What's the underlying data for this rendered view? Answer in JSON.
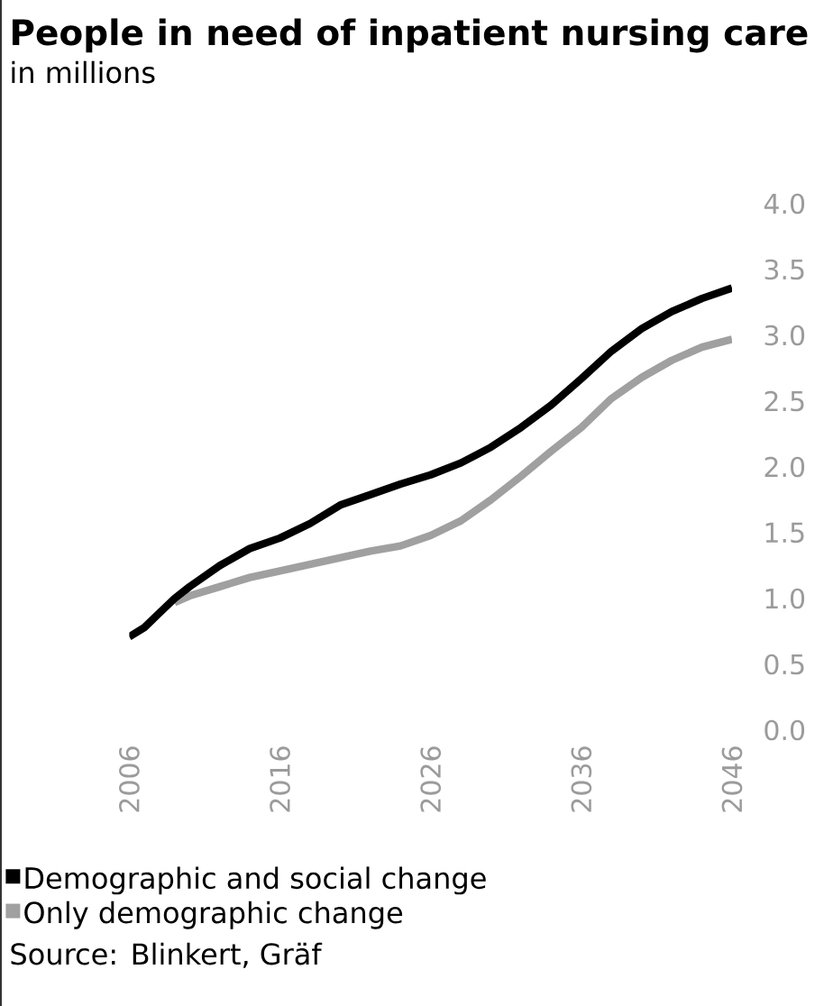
{
  "chart_data": {
    "type": "line",
    "title": "People in need of inpatient nursing care",
    "subtitle": "in millions",
    "series": [
      {
        "name": "Demographic and social change",
        "color": "#000000",
        "x": [
          2006,
          2007,
          2008,
          2009,
          2010,
          2012,
          2014,
          2016,
          2018,
          2020,
          2022,
          2024,
          2026,
          2028,
          2030,
          2032,
          2034,
          2036,
          2038,
          2040,
          2042,
          2044,
          2046
        ],
        "values": [
          0.71,
          0.78,
          0.89,
          1.0,
          1.09,
          1.25,
          1.38,
          1.46,
          1.57,
          1.71,
          1.79,
          1.87,
          1.94,
          2.03,
          2.15,
          2.3,
          2.47,
          2.67,
          2.88,
          3.05,
          3.18,
          3.28,
          3.36
        ]
      },
      {
        "name": "Only demographic change",
        "color": "#a0a0a0",
        "x": [
          2009,
          2010,
          2012,
          2014,
          2016,
          2018,
          2020,
          2022,
          2024,
          2026,
          2028,
          2030,
          2032,
          2034,
          2036,
          2038,
          2040,
          2042,
          2044,
          2046
        ],
        "values": [
          0.97,
          1.02,
          1.09,
          1.16,
          1.21,
          1.26,
          1.31,
          1.36,
          1.4,
          1.48,
          1.59,
          1.75,
          1.93,
          2.12,
          2.3,
          2.52,
          2.68,
          2.81,
          2.91,
          2.97
        ]
      }
    ],
    "xlim": [
      2006,
      2046
    ],
    "xticks": [
      2006,
      2016,
      2026,
      2036,
      2046
    ],
    "ylim": [
      0,
      4
    ],
    "yticks": [
      {
        "value": 0,
        "label": "0.0"
      },
      {
        "value": 0.5,
        "label": "0.5"
      },
      {
        "value": 1,
        "label": "1.0"
      },
      {
        "value": 1.5,
        "label": "1.5"
      },
      {
        "value": 2,
        "label": "2.0"
      },
      {
        "value": 2.5,
        "label": "2.5"
      },
      {
        "value": 3,
        "label": "3.0"
      },
      {
        "value": 3.5,
        "label": "3.5"
      },
      {
        "value": 4,
        "label": "4.0"
      }
    ],
    "grid": false,
    "legend": "bottom",
    "marker": "none",
    "line_style": "solid",
    "annotations": [
      "Source: Blinkert, Gräf"
    ]
  }
}
